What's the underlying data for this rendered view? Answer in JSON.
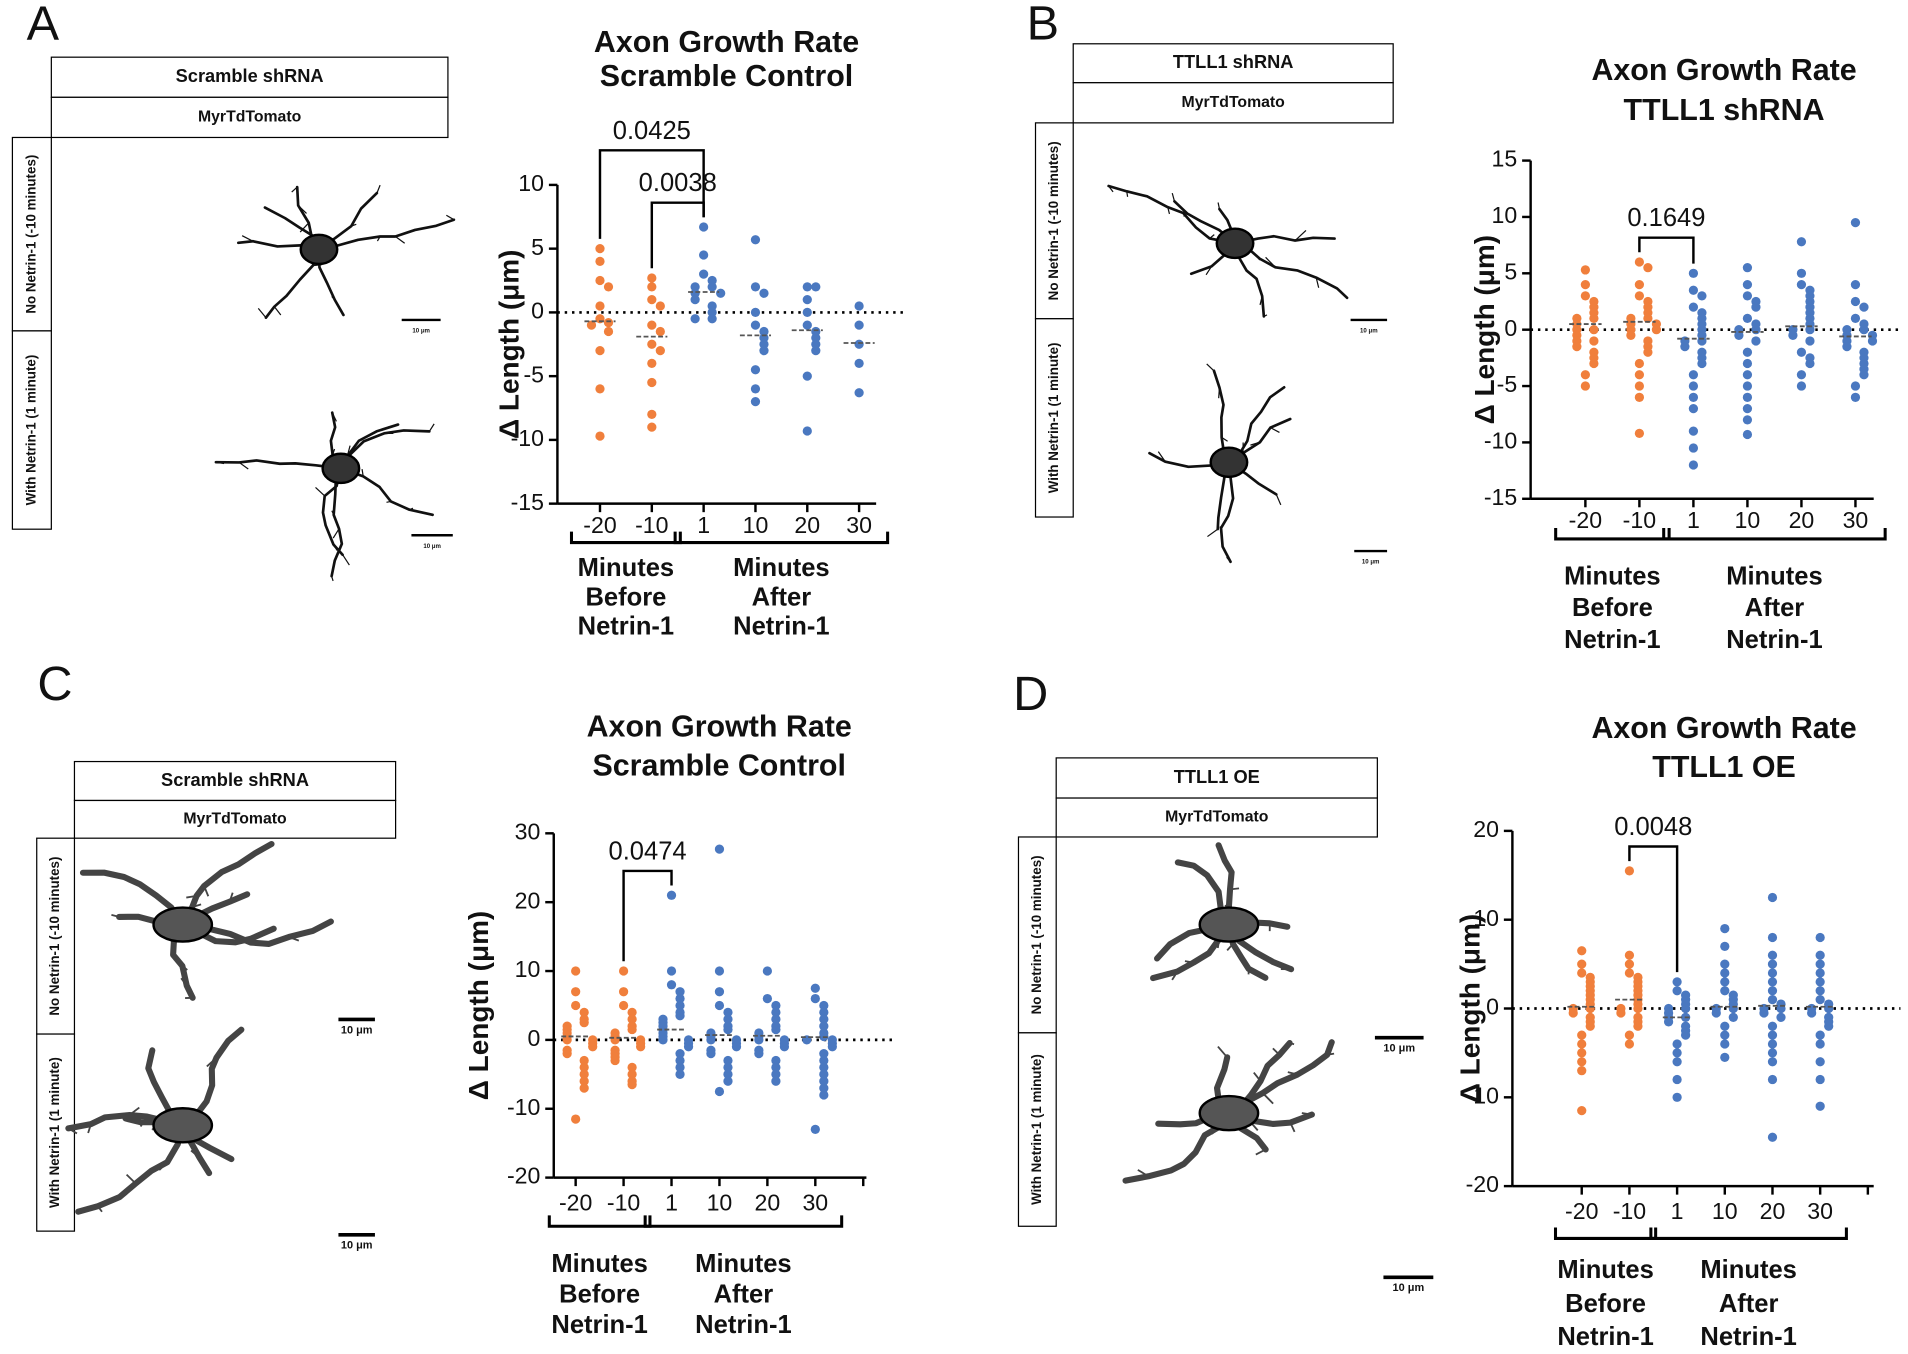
{
  "panels": [
    {
      "letter": "A",
      "condition": "Scramble shRNA",
      "marker": "MyrTdTomato",
      "rows": [
        "No Netrin-1 (-10 minutes)",
        "With Netrin-1 (1 minute)"
      ],
      "scale_bars": [
        "10 μm",
        "10 μm"
      ]
    },
    {
      "letter": "B",
      "condition": "TTLL1 shRNA",
      "marker": "MyrTdTomato",
      "rows": [
        "No Netrin-1 (-10 minutes)",
        "With Netrin-1 (1 minute)"
      ],
      "scale_bars": [
        "10 μm",
        "10 μm"
      ]
    },
    {
      "letter": "C",
      "condition": "Scramble shRNA",
      "marker": "MyrTdTomato",
      "rows": [
        "No Netrin-1 (-10 minutes)",
        "With Netrin-1 (1 minute)"
      ],
      "scale_bars": [
        "10 μm",
        "10 μm"
      ]
    },
    {
      "letter": "D",
      "condition": "TTLL1 OE",
      "marker": "MyrTdTomato",
      "rows": [
        "No Netrin-1 (-10 minutes)",
        "With Netrin-1 (1 minute)"
      ],
      "scale_bars": [
        "10 μm",
        "10 μm"
      ]
    }
  ],
  "chart_data": [
    {
      "type": "strip",
      "title": [
        "Axon Growth Rate",
        "Scramble Control"
      ],
      "ylabel": "Δ Length (μm)",
      "categories": [
        "-20",
        "-10",
        "1",
        "10",
        "20",
        "30"
      ],
      "colors": [
        "#f07f3c",
        "#f07f3c",
        "#4a78c0",
        "#4a78c0",
        "#4a78c0",
        "#4a78c0"
      ],
      "values": [
        [
          5,
          4,
          2.5,
          2,
          0.5,
          -0.5,
          -0.8,
          -1,
          -1.5,
          -3,
          -6,
          -9.7
        ],
        [
          2.7,
          2,
          1,
          0.5,
          -1,
          -1.5,
          -2.5,
          -3,
          -4,
          -5.5,
          -8,
          -9
        ],
        [
          6.7,
          4.5,
          3,
          2.5,
          2,
          2,
          1.5,
          1.5,
          1,
          0.5,
          0,
          -0.5,
          -0.5
        ],
        [
          5.7,
          2,
          1.5,
          0,
          -1,
          -1.5,
          -2,
          -2.5,
          -3,
          -4.5,
          -6,
          -7
        ],
        [
          2,
          2,
          1,
          0,
          -1,
          -1.5,
          -2,
          -2.5,
          -3,
          -5,
          -9.3
        ],
        [
          0.5,
          -1,
          -2.5,
          -4,
          -6.3
        ]
      ],
      "means": [
        -0.7,
        -1.9,
        1.6,
        -1.8,
        -1.4,
        -2.4
      ],
      "ylim": [
        -15,
        10
      ],
      "yticks": [
        -15,
        -10,
        -5,
        0,
        5,
        10
      ],
      "comparisons": [
        {
          "label": "0.0425",
          "groups": [
            0,
            2
          ]
        },
        {
          "label": "0.0038",
          "groups": [
            1,
            2
          ]
        }
      ],
      "group_labels": [
        [
          "Minutes",
          "Before",
          "Netrin-1"
        ],
        [
          "Minutes",
          "After",
          "Netrin-1"
        ]
      ]
    },
    {
      "type": "strip",
      "title": [
        "Axon Growth Rate",
        "TTLL1 shRNA"
      ],
      "ylabel": "Δ Length (μm)",
      "categories": [
        "-20",
        "-10",
        "1",
        "10",
        "20",
        "30"
      ],
      "colors": [
        "#f07f3c",
        "#f07f3c",
        "#4a78c0",
        "#4a78c0",
        "#4a78c0",
        "#4a78c0"
      ],
      "values": [
        [
          5.3,
          4,
          3,
          2.5,
          2,
          1.5,
          1,
          1,
          0.5,
          0,
          0,
          -0.5,
          -1,
          -1,
          -1.5,
          -2,
          -2.5,
          -3,
          -4,
          -5
        ],
        [
          6,
          5.5,
          4,
          3,
          2.5,
          2,
          1.5,
          1,
          1,
          0.5,
          0.5,
          0,
          0,
          -0.5,
          -1,
          -1.5,
          -2,
          -3,
          -4,
          -5,
          -6,
          -9.2
        ],
        [
          5,
          3.5,
          3,
          2,
          1.5,
          1,
          0.5,
          0,
          -0.5,
          -1,
          -1,
          -1.5,
          -2,
          -2.5,
          -3,
          -4,
          -5,
          -6,
          -7,
          -9,
          -10.5,
          -12
        ],
        [
          5.5,
          4,
          3,
          2.5,
          2,
          1,
          0.5,
          0,
          0,
          -0.5,
          -1,
          -2,
          -3,
          -4,
          -5,
          -6,
          -7,
          -8,
          -9.3
        ],
        [
          7.8,
          5,
          4,
          3.5,
          3,
          2.5,
          2,
          1.5,
          1,
          0.5,
          0,
          0,
          -0.5,
          -1,
          -2,
          -2.5,
          -3,
          -4,
          -5
        ],
        [
          9.5,
          4,
          2.5,
          2,
          1,
          0.5,
          0,
          0,
          -0.5,
          -0.5,
          -1,
          -1,
          -1.5,
          -2,
          -2.5,
          -3,
          -3.5,
          -4,
          -5,
          -6
        ]
      ],
      "means": [
        0.5,
        0.7,
        -0.8,
        -0.2,
        0.3,
        -0.6
      ],
      "ylim": [
        -15,
        15
      ],
      "yticks": [
        -15,
        -10,
        -5,
        0,
        5,
        10,
        15
      ],
      "comparisons": [
        {
          "label": "0.1649",
          "groups": [
            1,
            2
          ]
        }
      ],
      "group_labels": [
        [
          "Minutes",
          "Before",
          "Netrin-1"
        ],
        [
          "Minutes",
          "After",
          "Netrin-1"
        ]
      ]
    },
    {
      "type": "strip",
      "title": [
        "Axon Growth Rate",
        "Scramble Control"
      ],
      "ylabel": "Δ Length (μm)",
      "categories": [
        "-20",
        "-10",
        "1",
        "10",
        "20",
        "30",
        null
      ],
      "colors": [
        "#f07f3c",
        "#f07f3c",
        "#4a78c0",
        "#4a78c0",
        "#4a78c0",
        "#4a78c0",
        null
      ],
      "values": [
        [
          10,
          7,
          5,
          4,
          3,
          2.5,
          2,
          1.5,
          1,
          0.5,
          0,
          0,
          -0.5,
          -1,
          -1.5,
          -2,
          -3,
          -4,
          -5,
          -6,
          -7,
          -11.5
        ],
        [
          10,
          7,
          5,
          4,
          3,
          2,
          1.5,
          1,
          0.5,
          0,
          0,
          -0.5,
          -1,
          -1.5,
          -2,
          -2.5,
          -3,
          -4,
          -5,
          -6,
          -6.5
        ],
        [
          21,
          10,
          8,
          7,
          6,
          5,
          4,
          3.5,
          3,
          2.5,
          2,
          1.5,
          1,
          0.5,
          0,
          0,
          -0.5,
          -1,
          -2,
          -3,
          -4,
          -5
        ],
        [
          27.7,
          10,
          7,
          5,
          4,
          3,
          2,
          1.5,
          1,
          0.5,
          0,
          0,
          -0.5,
          -1,
          -1.5,
          -2,
          -3,
          -4,
          -5,
          -6,
          -7.5
        ],
        [
          10,
          6,
          5,
          4,
          3,
          2,
          1.5,
          1,
          0.5,
          0,
          0,
          -0.5,
          -1,
          -1.5,
          -2,
          -3,
          -4,
          -5,
          -6
        ],
        [
          7.5,
          6,
          5,
          4,
          3,
          2,
          1,
          0.5,
          0,
          0,
          -0.5,
          -1,
          -2,
          -3,
          -4,
          -5,
          -6,
          -7,
          -8,
          -13
        ],
        []
      ],
      "means": [
        0.5,
        0.3,
        1.5,
        0.7,
        0.6,
        0.4,
        null
      ],
      "ylim": [
        -20,
        30
      ],
      "yticks": [
        -20,
        -10,
        0,
        10,
        20,
        30
      ],
      "comparisons": [
        {
          "label": "0.0474",
          "groups": [
            1,
            2
          ]
        }
      ],
      "group_labels": [
        [
          "Minutes",
          "Before",
          "Netrin-1"
        ],
        [
          "Minutes",
          "After",
          "Netrin-1"
        ]
      ]
    },
    {
      "type": "strip",
      "title": [
        "Axon Growth Rate",
        "TTLL1 OE"
      ],
      "ylabel": "Δ Length (μm)",
      "categories": [
        "-20",
        "-10",
        "1",
        "10",
        "20",
        "30",
        null
      ],
      "colors": [
        "#f07f3c",
        "#f07f3c",
        "#4a78c0",
        "#4a78c0",
        "#4a78c0",
        "#4a78c0",
        null
      ],
      "values": [
        [
          6.5,
          5,
          4,
          3.5,
          3,
          2.5,
          2,
          1.5,
          1,
          0.5,
          0,
          0,
          -0.5,
          -1,
          -1.5,
          -2,
          -3,
          -4,
          -5,
          -6,
          -7,
          -11.5
        ],
        [
          15.5,
          6,
          5,
          4,
          3.5,
          3,
          2.5,
          2,
          1.5,
          1,
          0.5,
          0,
          0,
          -0.5,
          -1,
          -1.5,
          -2,
          -3,
          -4
        ],
        [
          3,
          2,
          1.5,
          1,
          0.5,
          0,
          0,
          -0.5,
          -1,
          -1,
          -1.5,
          -2,
          -2.5,
          -3,
          -4,
          -5,
          -6,
          -8,
          -10
        ],
        [
          9,
          7,
          5,
          4,
          3,
          2,
          1.5,
          1,
          0.5,
          0,
          0,
          -0.5,
          -1,
          -2,
          -3,
          -4,
          -5.5
        ],
        [
          12.5,
          8,
          6,
          5,
          4,
          3,
          2,
          1,
          0.5,
          0,
          0,
          -0.5,
          -1,
          -2,
          -3,
          -4,
          -5,
          -6,
          -8,
          -14.5
        ],
        [
          8,
          6,
          5,
          4,
          3,
          2,
          1,
          0.5,
          0,
          0,
          -0.5,
          -1,
          -1.5,
          -2,
          -3,
          -4,
          -6,
          -8,
          -11
        ],
        []
      ],
      "means": [
        0.2,
        1,
        -1,
        0.2,
        0.3,
        0.2,
        null
      ],
      "ylim": [
        -20,
        20
      ],
      "yticks": [
        -20,
        -10,
        0,
        10,
        20
      ],
      "comparisons": [
        {
          "label": "0.0048",
          "groups": [
            1,
            2
          ]
        }
      ],
      "group_labels": [
        [
          "Minutes",
          "Before",
          "Netrin-1"
        ],
        [
          "Minutes",
          "After",
          "Netrin-1"
        ]
      ]
    }
  ]
}
